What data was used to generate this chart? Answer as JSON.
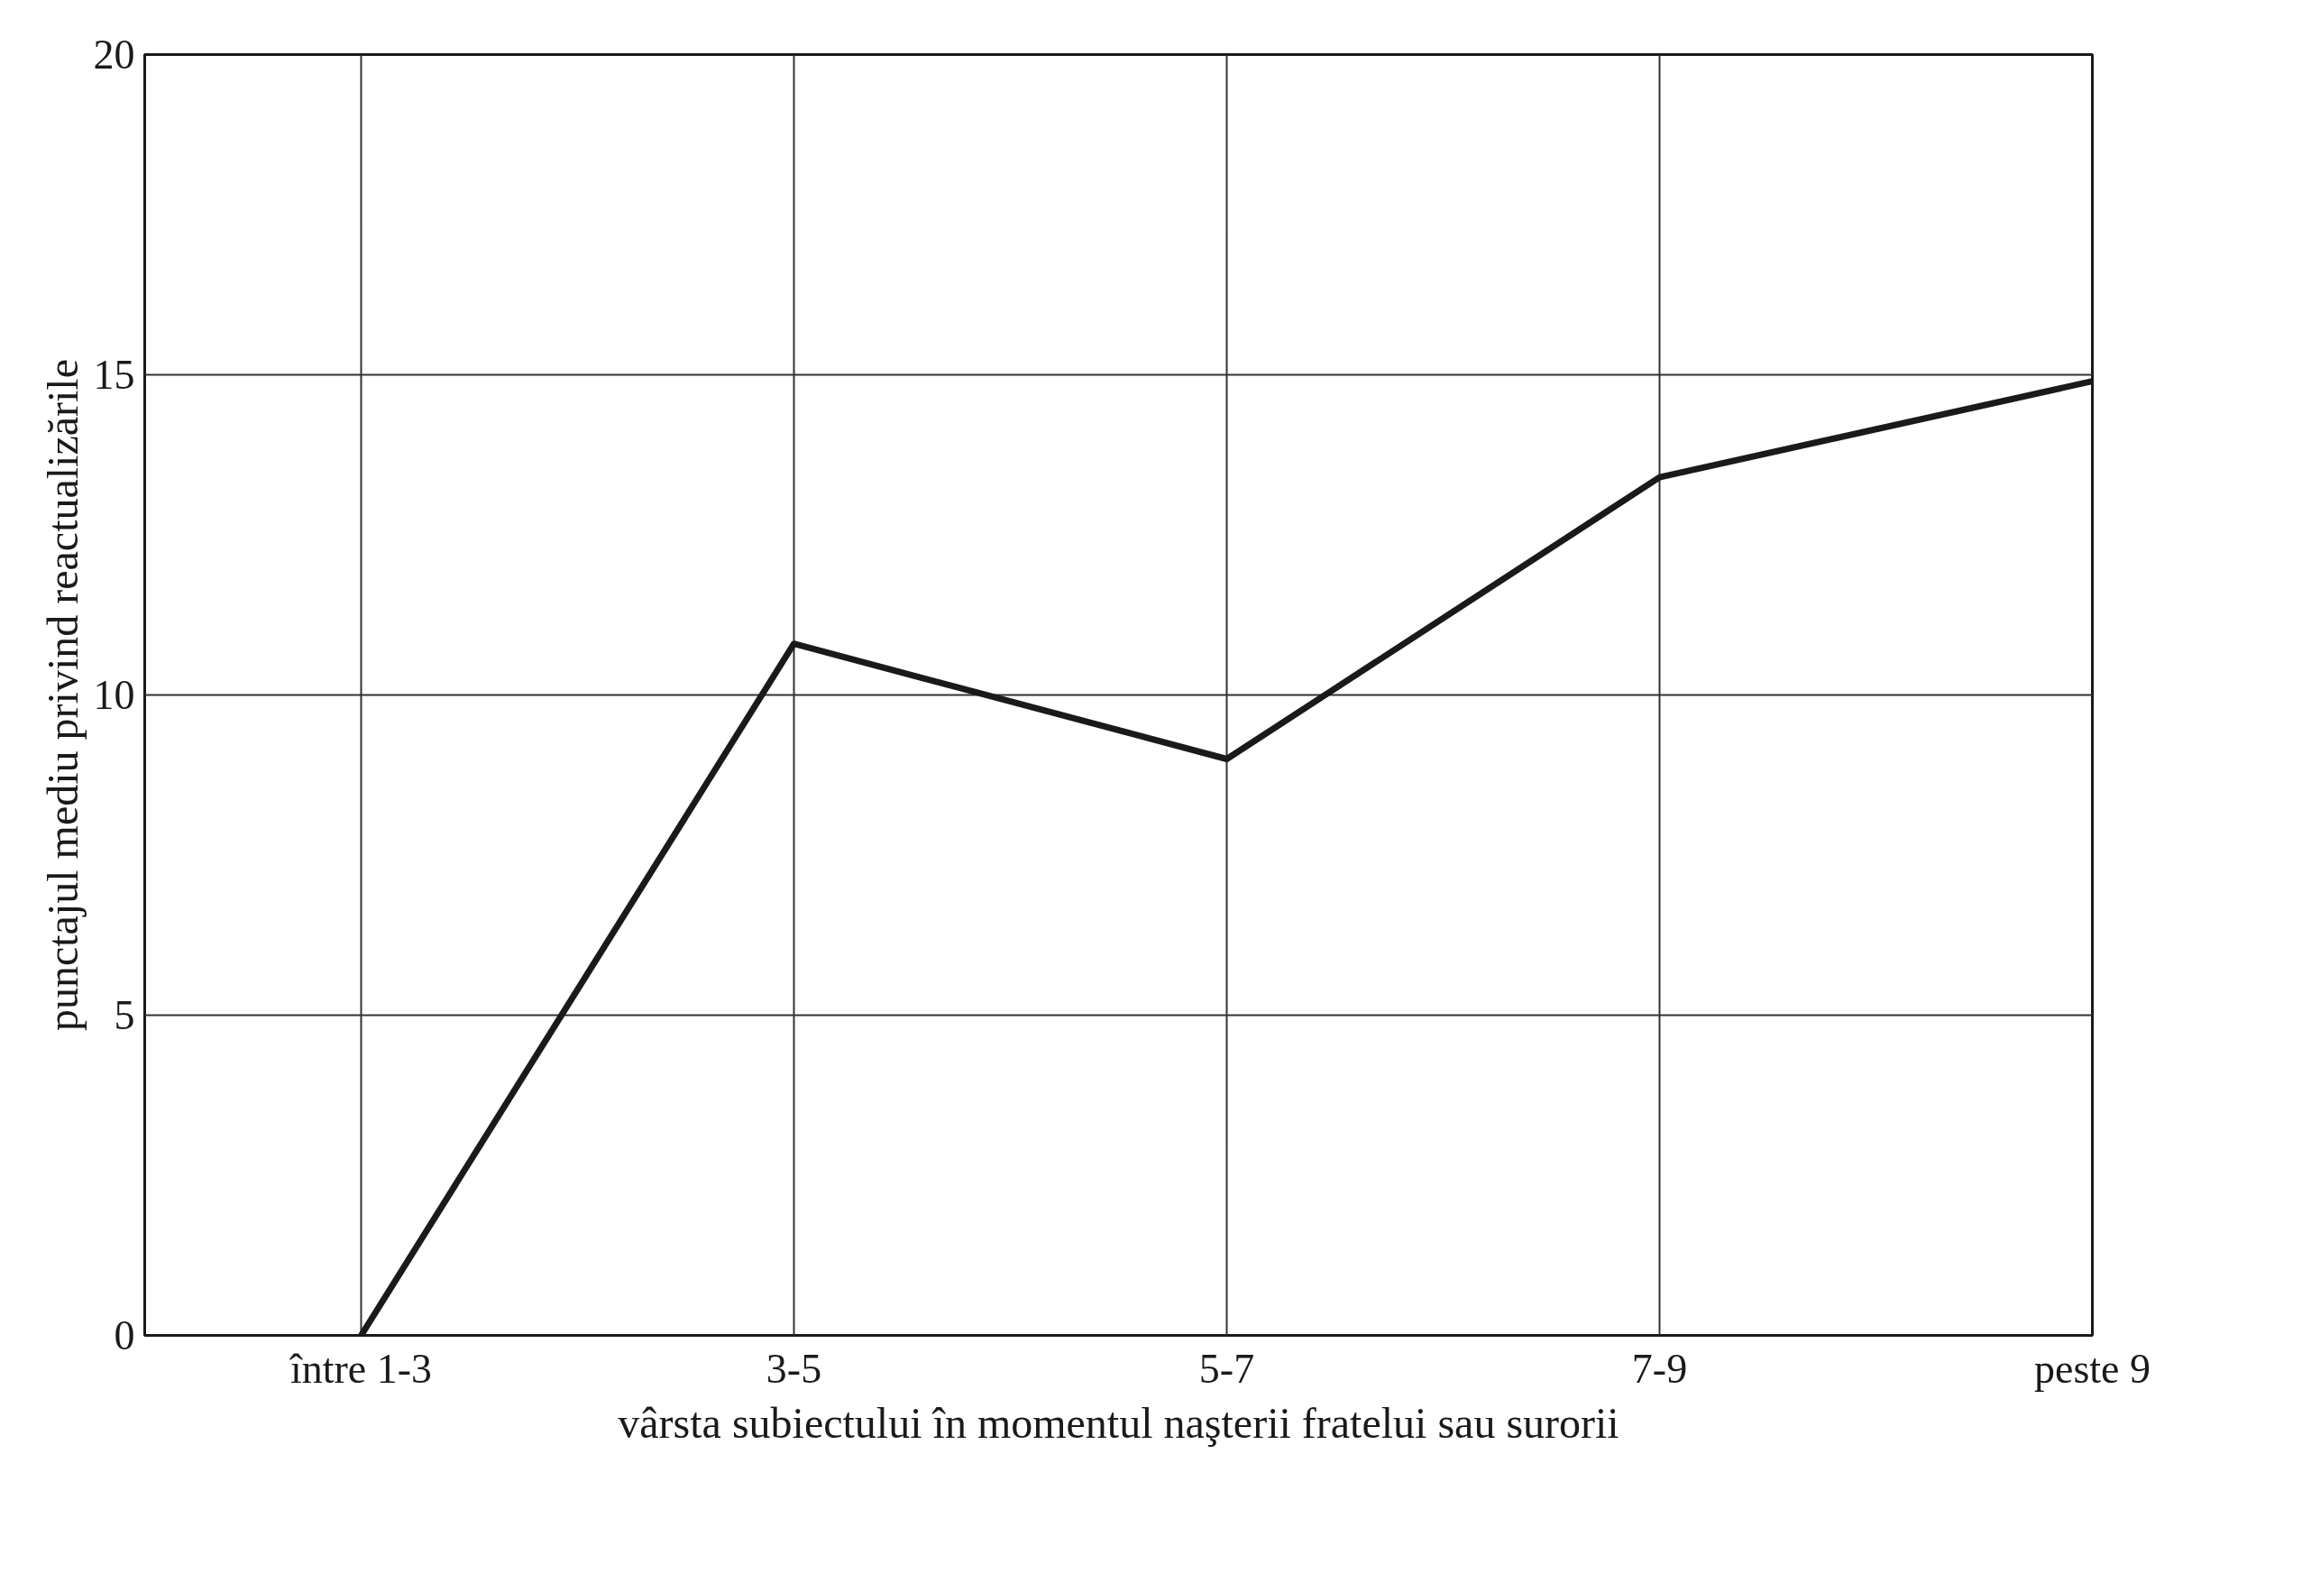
{
  "chart_data": {
    "type": "line",
    "xlabel": "vârsta subiectului în momentul naşterii fratelui sau surorii",
    "ylabel": "punctajul mediu privind reactualizările",
    "categories": [
      "între 1-3",
      "3-5",
      "5-7",
      "7-9",
      "peste 9"
    ],
    "series": [
      {
        "color": "#1a1a1a",
        "values": [
          0,
          10.8,
          9,
          13.4,
          14.9
        ]
      }
    ],
    "ylim": [
      0,
      20
    ],
    "yticks": [
      0,
      5,
      10,
      15,
      20
    ],
    "grid": true,
    "marker": "none",
    "line_style": "solid"
  }
}
